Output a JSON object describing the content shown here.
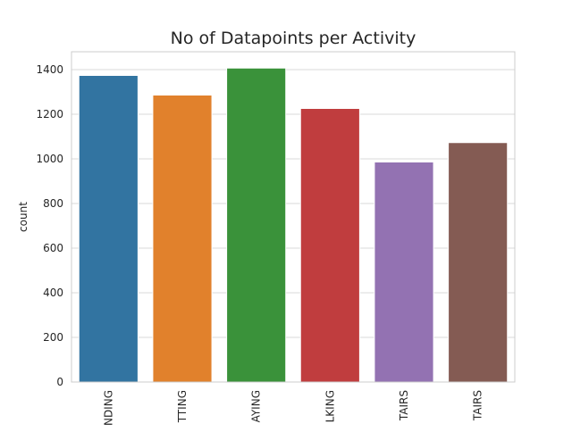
{
  "chart_data": {
    "type": "bar",
    "title": "No of Datapoints per Activity",
    "xlabel": "",
    "ylabel": "count",
    "categories": [
      "NDING",
      "TTING",
      "AYING",
      "LKING",
      "TAIRS",
      "TAIRS"
    ],
    "values": [
      1374,
      1286,
      1407,
      1226,
      986,
      1073
    ],
    "colors": [
      "#3274a1",
      "#e1812c",
      "#3a923a",
      "#c03d3e",
      "#9372b2",
      "#845b53"
    ],
    "ylim": [
      0,
      1480
    ],
    "yticks": [
      0,
      200,
      400,
      600,
      800,
      1000,
      1200,
      1400
    ],
    "grid": true,
    "style": "seaborn-whitegrid"
  }
}
